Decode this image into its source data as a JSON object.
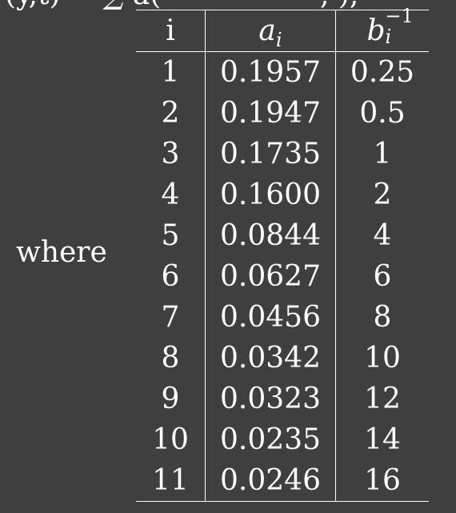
{
  "context": {
    "where_label": "where",
    "top_fragment_left": "(y,t) = ∑ a(",
    "top_fragment_right": ",  ),"
  },
  "table": {
    "headers": {
      "i": "i",
      "a_base": "a",
      "a_sub": "i",
      "b_base": "b",
      "b_sup": "−1",
      "b_sub": "i"
    },
    "rows": [
      {
        "i": "1",
        "a": "0.1957",
        "b": "0.25"
      },
      {
        "i": "2",
        "a": "0.1947",
        "b": "0.5"
      },
      {
        "i": "3",
        "a": "0.1735",
        "b": "1"
      },
      {
        "i": "4",
        "a": "0.1600",
        "b": "2"
      },
      {
        "i": "5",
        "a": "0.0844",
        "b": "4"
      },
      {
        "i": "6",
        "a": "0.0627",
        "b": "6"
      },
      {
        "i": "7",
        "a": "0.0456",
        "b": "8"
      },
      {
        "i": "8",
        "a": "0.0342",
        "b": "10"
      },
      {
        "i": "9",
        "a": "0.0323",
        "b": "12"
      },
      {
        "i": "10",
        "a": "0.0235",
        "b": "14"
      },
      {
        "i": "11",
        "a": "0.0246",
        "b": "16"
      }
    ]
  }
}
